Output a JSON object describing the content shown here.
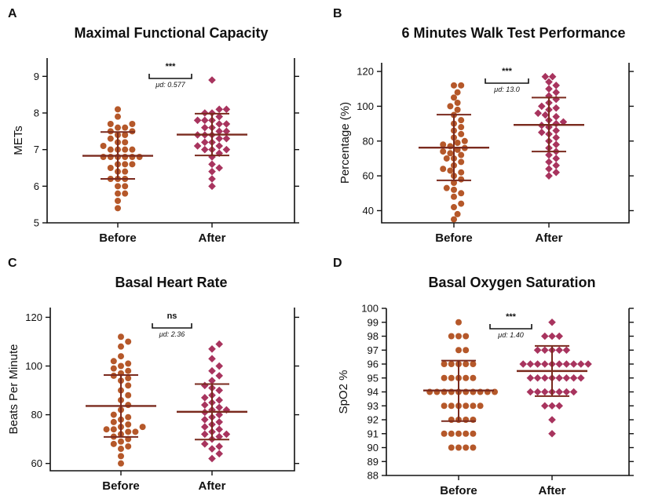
{
  "figure": {
    "colors": {
      "before": "#B5582A",
      "after": "#A8345E",
      "bar": "#7A2A1E"
    },
    "categories": [
      "Before",
      "After"
    ]
  },
  "chart_data": [
    {
      "letter": "A",
      "type": "scatter",
      "title": "Maximal Functional Capacity",
      "ylabel": "METs",
      "ylim": [
        5,
        9.5
      ],
      "yticks": [
        5,
        6,
        7,
        8,
        9
      ],
      "categories": [
        "Before",
        "After"
      ],
      "significance": "***",
      "mean_difference": "μd: 0.577",
      "summary": {
        "Before": {
          "mean": 6.83,
          "sd_low": 6.2,
          "sd_high": 7.48
        },
        "After": {
          "mean": 7.41,
          "sd_low": 6.84,
          "sd_high": 7.98
        }
      },
      "series": [
        {
          "name": "Before",
          "values": [
            5.4,
            5.6,
            5.8,
            5.8,
            6.0,
            6.0,
            6.2,
            6.2,
            6.2,
            6.4,
            6.4,
            6.5,
            6.6,
            6.6,
            6.6,
            6.8,
            6.8,
            6.8,
            6.8,
            6.8,
            6.8,
            7.0,
            7.0,
            7.0,
            7.0,
            7.1,
            7.2,
            7.2,
            7.3,
            7.4,
            7.4,
            7.5,
            7.5,
            7.6,
            7.6,
            7.7,
            7.7,
            7.9,
            8.1
          ]
        },
        {
          "name": "After",
          "values": [
            6.0,
            6.2,
            6.4,
            6.5,
            6.6,
            6.8,
            6.9,
            7.0,
            7.0,
            7.0,
            7.1,
            7.1,
            7.2,
            7.2,
            7.3,
            7.3,
            7.4,
            7.4,
            7.4,
            7.5,
            7.5,
            7.6,
            7.6,
            7.7,
            7.7,
            7.8,
            7.8,
            7.8,
            7.9,
            8.0,
            8.0,
            8.1,
            8.1,
            8.9
          ]
        }
      ]
    },
    {
      "letter": "B",
      "type": "scatter",
      "title": "6 Minutes Walk Test Performance",
      "ylabel": "Percentage (%)",
      "ylim": [
        33,
        125
      ],
      "yticks": [
        40,
        60,
        80,
        100,
        120
      ],
      "categories": [
        "Before",
        "After"
      ],
      "significance": "***",
      "mean_difference": "μd: 13.0",
      "summary": {
        "Before": {
          "mean": 76.2,
          "sd_low": 57.4,
          "sd_high": 95.2
        },
        "After": {
          "mean": 89.3,
          "sd_low": 74.0,
          "sd_high": 105.0
        }
      },
      "series": [
        {
          "name": "Before",
          "values": [
            35,
            38,
            42,
            44,
            48,
            50,
            52,
            53,
            56,
            58,
            60,
            62,
            63,
            64,
            66,
            68,
            70,
            70,
            72,
            73,
            74,
            75,
            76,
            77,
            78,
            79,
            80,
            82,
            84,
            86,
            88,
            90,
            92,
            95,
            98,
            100,
            102,
            105,
            108,
            112,
            112
          ]
        },
        {
          "name": "After",
          "values": [
            60,
            62,
            64,
            66,
            68,
            70,
            72,
            74,
            76,
            78,
            80,
            82,
            84,
            85,
            86,
            88,
            89,
            90,
            91,
            92,
            94,
            95,
            96,
            98,
            99,
            100,
            102,
            104,
            106,
            108,
            110,
            112,
            114,
            117,
            117
          ]
        }
      ]
    },
    {
      "letter": "C",
      "type": "scatter",
      "title": "Basal Heart Rate",
      "ylabel": "Beats Per Minute",
      "ylim": [
        57,
        124
      ],
      "yticks": [
        60,
        80,
        100,
        120
      ],
      "categories": [
        "Before",
        "After"
      ],
      "significance": "ns",
      "mean_difference": "μd: 2.36",
      "summary": {
        "Before": {
          "mean": 83.6,
          "sd_low": 70.9,
          "sd_high": 96.3
        },
        "After": {
          "mean": 81.2,
          "sd_low": 69.8,
          "sd_high": 92.6
        }
      },
      "series": [
        {
          "name": "Before",
          "values": [
            60,
            63,
            66,
            67,
            68,
            69,
            70,
            71,
            72,
            73,
            73,
            74,
            74,
            75,
            75,
            76,
            77,
            78,
            79,
            80,
            82,
            84,
            86,
            88,
            90,
            92,
            94,
            95,
            96,
            97,
            98,
            99,
            100,
            101,
            102,
            104,
            108,
            110,
            112
          ]
        },
        {
          "name": "After",
          "values": [
            62,
            64,
            66,
            67,
            68,
            70,
            71,
            72,
            72,
            73,
            74,
            75,
            76,
            77,
            78,
            79,
            80,
            81,
            82,
            82,
            83,
            84,
            85,
            86,
            87,
            88,
            90,
            91,
            92,
            94,
            96,
            98,
            100,
            103,
            107,
            109
          ]
        }
      ]
    },
    {
      "letter": "D",
      "type": "scatter",
      "title": "Basal Oxygen Saturation",
      "ylabel": "SpO2 %",
      "ylim": [
        88,
        100
      ],
      "yticks": [
        88,
        89,
        90,
        91,
        92,
        93,
        94,
        95,
        96,
        97,
        98,
        99,
        100
      ],
      "categories": [
        "Before",
        "After"
      ],
      "significance": "***",
      "mean_difference": "μd: 1.40",
      "summary": {
        "Before": {
          "mean": 94.1,
          "sd_low": 91.9,
          "sd_high": 96.25
        },
        "After": {
          "mean": 95.5,
          "sd_low": 93.7,
          "sd_high": 97.3
        }
      },
      "series": [
        {
          "name": "Before",
          "values": [
            90,
            90,
            90,
            90,
            91,
            91,
            91,
            91,
            91,
            92,
            92,
            92,
            92,
            93,
            93,
            93,
            93,
            93,
            93,
            94,
            94,
            94,
            94,
            94,
            94,
            94,
            94,
            94,
            94,
            95,
            95,
            95,
            95,
            95,
            96,
            96,
            96,
            96,
            96,
            97,
            97,
            98,
            98,
            98,
            99
          ]
        },
        {
          "name": "After",
          "values": [
            91,
            92,
            93,
            93,
            93,
            94,
            94,
            94,
            94,
            94,
            94,
            94,
            95,
            95,
            95,
            95,
            95,
            95,
            95,
            95,
            96,
            96,
            96,
            96,
            96,
            96,
            96,
            96,
            96,
            96,
            97,
            97,
            97,
            97,
            97,
            98,
            98,
            98,
            99
          ]
        }
      ]
    }
  ]
}
